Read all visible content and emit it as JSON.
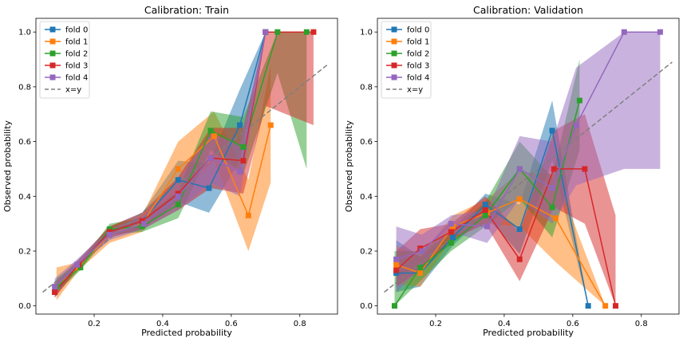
{
  "chart_data": [
    {
      "type": "line",
      "title": "Calibration: Train",
      "xlabel": "Predicted probability",
      "ylabel": "Observed probability",
      "xlim": [
        0.03,
        0.91
      ],
      "ylim": [
        -0.03,
        1.05
      ],
      "xticks": [
        0.2,
        0.4,
        0.6,
        0.8
      ],
      "yticks": [
        0.0,
        0.2,
        0.4,
        0.6,
        0.8,
        1.0
      ],
      "tick_labels_x": [
        "0.2",
        "0.4",
        "0.6",
        "0.8"
      ],
      "tick_labels_y": [
        "0.0",
        "0.2",
        "0.4",
        "0.6",
        "0.8",
        "1.0"
      ],
      "legend_position": "top-left",
      "grid": false,
      "diagonal": {
        "name": "x=y",
        "x": [
          0.05,
          0.88
        ],
        "y": [
          0.05,
          0.88
        ],
        "color": "#7f7f7f",
        "style": "dashed"
      },
      "series": [
        {
          "name": "fold 0",
          "color": "#1f77b4",
          "x": [
            0.085,
            0.155,
            0.245,
            0.34,
            0.445,
            0.535,
            0.625,
            0.7
          ],
          "y": [
            0.05,
            0.15,
            0.27,
            0.31,
            0.46,
            0.43,
            0.66,
            1.0
          ],
          "lower": [
            0.03,
            0.14,
            0.25,
            0.28,
            0.38,
            0.34,
            0.53,
            1.0
          ],
          "upper": [
            0.09,
            0.17,
            0.29,
            0.34,
            0.53,
            0.52,
            0.79,
            1.0
          ]
        },
        {
          "name": "fold 1",
          "color": "#ff7f0e",
          "x": [
            0.09,
            0.155,
            0.245,
            0.34,
            0.445,
            0.55,
            0.65,
            0.715
          ],
          "y": [
            0.07,
            0.14,
            0.26,
            0.3,
            0.5,
            0.62,
            0.33,
            0.66
          ],
          "lower": [
            0.02,
            0.13,
            0.23,
            0.27,
            0.41,
            0.53,
            0.2,
            0.45
          ],
          "upper": [
            0.14,
            0.16,
            0.29,
            0.33,
            0.6,
            0.71,
            0.46,
            0.88
          ]
        },
        {
          "name": "fold 2",
          "color": "#2ca02c",
          "x": [
            0.09,
            0.16,
            0.245,
            0.34,
            0.445,
            0.54,
            0.635,
            0.735,
            0.82
          ],
          "y": [
            0.07,
            0.14,
            0.28,
            0.29,
            0.37,
            0.64,
            0.58,
            1.0,
            1.0
          ],
          "lower": [
            0.05,
            0.13,
            0.26,
            0.27,
            0.32,
            0.57,
            0.48,
            0.85,
            0.5
          ],
          "upper": [
            0.1,
            0.16,
            0.3,
            0.32,
            0.42,
            0.71,
            0.69,
            1.0,
            1.0
          ]
        },
        {
          "name": "fold 3",
          "color": "#d62728",
          "x": [
            0.085,
            0.155,
            0.245,
            0.34,
            0.445,
            0.54,
            0.635,
            0.7,
            0.84
          ],
          "y": [
            0.05,
            0.15,
            0.27,
            0.31,
            0.41,
            0.54,
            0.53,
            1.0,
            1.0
          ],
          "lower": [
            0.03,
            0.14,
            0.25,
            0.28,
            0.35,
            0.43,
            0.41,
            0.73,
            0.66
          ],
          "upper": [
            0.08,
            0.17,
            0.29,
            0.34,
            0.47,
            0.65,
            0.65,
            1.0,
            1.0
          ]
        },
        {
          "name": "fold 4",
          "color": "#9467bd",
          "x": [
            0.085,
            0.15,
            0.245,
            0.345,
            0.445,
            0.54,
            0.625,
            0.7
          ],
          "y": [
            0.07,
            0.15,
            0.26,
            0.3,
            0.4,
            0.54,
            0.49,
            1.0
          ],
          "lower": [
            0.04,
            0.14,
            0.24,
            0.28,
            0.35,
            0.45,
            0.4,
            1.0
          ],
          "upper": [
            0.1,
            0.17,
            0.28,
            0.33,
            0.46,
            0.63,
            0.59,
            1.0
          ]
        }
      ]
    },
    {
      "type": "line",
      "title": "Calibration: Validation",
      "xlabel": "Predicted probability",
      "ylabel": "Observed probability",
      "xlim": [
        0.03,
        0.91
      ],
      "ylim": [
        -0.03,
        1.05
      ],
      "xticks": [
        0.2,
        0.4,
        0.6,
        0.8
      ],
      "yticks": [
        0.0,
        0.2,
        0.4,
        0.6,
        0.8,
        1.0
      ],
      "tick_labels_x": [
        "0.2",
        "0.4",
        "0.6",
        "0.8"
      ],
      "tick_labels_y": [
        "0.0",
        "0.2",
        "0.4",
        "0.6",
        "0.8",
        "1.0"
      ],
      "legend_position": "top-left",
      "grid": false,
      "diagonal": {
        "name": "x=y",
        "x": [
          0.05,
          0.89
        ],
        "y": [
          0.05,
          0.89
        ],
        "color": "#7f7f7f",
        "style": "dashed"
      },
      "series": [
        {
          "name": "fold 0",
          "color": "#1f77b4",
          "x": [
            0.085,
            0.155,
            0.25,
            0.345,
            0.445,
            0.54,
            0.645
          ],
          "y": [
            0.12,
            0.12,
            0.25,
            0.37,
            0.28,
            0.64,
            0.0
          ],
          "lower": [
            0.05,
            0.07,
            0.22,
            0.33,
            0.19,
            0.53,
            0.0
          ],
          "upper": [
            0.24,
            0.18,
            0.28,
            0.41,
            0.37,
            0.75,
            0.0
          ]
        },
        {
          "name": "fold 1",
          "color": "#ff7f0e",
          "x": [
            0.085,
            0.155,
            0.25,
            0.35,
            0.445,
            0.55,
            0.695
          ],
          "y": [
            0.15,
            0.12,
            0.29,
            0.34,
            0.39,
            0.32,
            0.0
          ],
          "lower": [
            0.08,
            0.07,
            0.25,
            0.3,
            0.29,
            0.16,
            0.0
          ],
          "upper": [
            0.22,
            0.18,
            0.33,
            0.39,
            0.49,
            0.48,
            0.0
          ]
        },
        {
          "name": "fold 2",
          "color": "#2ca02c",
          "x": [
            0.08,
            0.155,
            0.245,
            0.345,
            0.445,
            0.54,
            0.62
          ],
          "y": [
            0.0,
            0.14,
            0.23,
            0.33,
            0.5,
            0.36,
            0.75
          ],
          "lower": [
            0.0,
            0.09,
            0.2,
            0.29,
            0.39,
            0.25,
            0.57
          ],
          "upper": [
            0.2,
            0.2,
            0.27,
            0.38,
            0.6,
            0.47,
            0.9
          ]
        },
        {
          "name": "fold 3",
          "color": "#d62728",
          "x": [
            0.085,
            0.155,
            0.245,
            0.345,
            0.445,
            0.545,
            0.635,
            0.725
          ],
          "y": [
            0.13,
            0.21,
            0.27,
            0.35,
            0.17,
            0.5,
            0.5,
            0.0
          ],
          "lower": [
            0.07,
            0.13,
            0.24,
            0.3,
            0.09,
            0.36,
            0.3,
            0.0
          ],
          "upper": [
            0.2,
            0.28,
            0.3,
            0.4,
            0.27,
            0.64,
            0.7,
            0.33
          ]
        },
        {
          "name": "fold 4",
          "color": "#9467bd",
          "x": [
            0.085,
            0.16,
            0.245,
            0.35,
            0.445,
            0.54,
            0.61,
            0.75,
            0.855
          ],
          "y": [
            0.17,
            0.2,
            0.3,
            0.29,
            0.5,
            0.43,
            0.66,
            1.0,
            1.0
          ],
          "lower": [
            0.05,
            0.14,
            0.27,
            0.23,
            0.39,
            0.3,
            0.44,
            0.5,
            0.5
          ],
          "upper": [
            0.29,
            0.26,
            0.33,
            0.35,
            0.62,
            0.6,
            0.87,
            1.0,
            1.0
          ]
        }
      ]
    }
  ]
}
